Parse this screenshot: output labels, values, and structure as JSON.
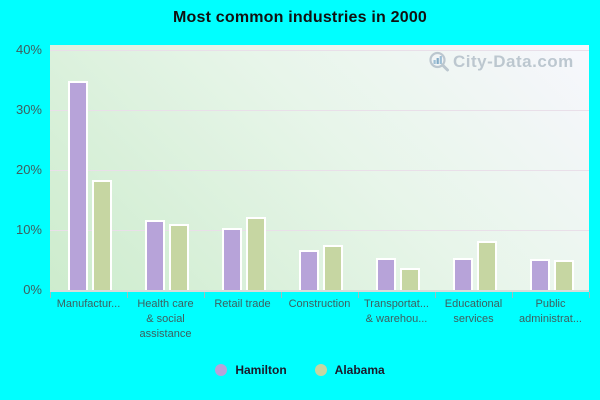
{
  "page": {
    "background_color": "#00ffff"
  },
  "chart_data": {
    "type": "bar",
    "title": "Most common industries in 2000",
    "categories": [
      "Manufactur...",
      "Health care\n& social\nassistance",
      "Retail trade",
      "Construction",
      "Transportat...\n& warehou...",
      "Educational\nservices",
      "Public\nadministrat..."
    ],
    "series": [
      {
        "name": "Hamilton",
        "color": "#b7a3d9",
        "values": [
          34.8,
          11.6,
          10.3,
          6.6,
          5.4,
          5.3,
          5.2
        ]
      },
      {
        "name": "Alabama",
        "color": "#c6d6a2",
        "values": [
          18.4,
          11.0,
          12.2,
          7.5,
          3.7,
          8.2,
          5.0
        ]
      }
    ],
    "ylabel": "",
    "xlabel": "",
    "ylim": [
      0,
      40
    ],
    "yticks": [
      0,
      10,
      20,
      30,
      40
    ],
    "ytick_suffix": "%",
    "grid": true,
    "legend_position": "bottom",
    "plot_gradient": [
      "#cdeccd",
      "#f7f7fd"
    ],
    "gridline_color": "#e9dfe9",
    "axis_label_color": "#3e5f5f"
  },
  "watermark": {
    "text": "City-Data.com",
    "icon": "magnifier-chart-icon",
    "color": "#b3bfc9"
  }
}
